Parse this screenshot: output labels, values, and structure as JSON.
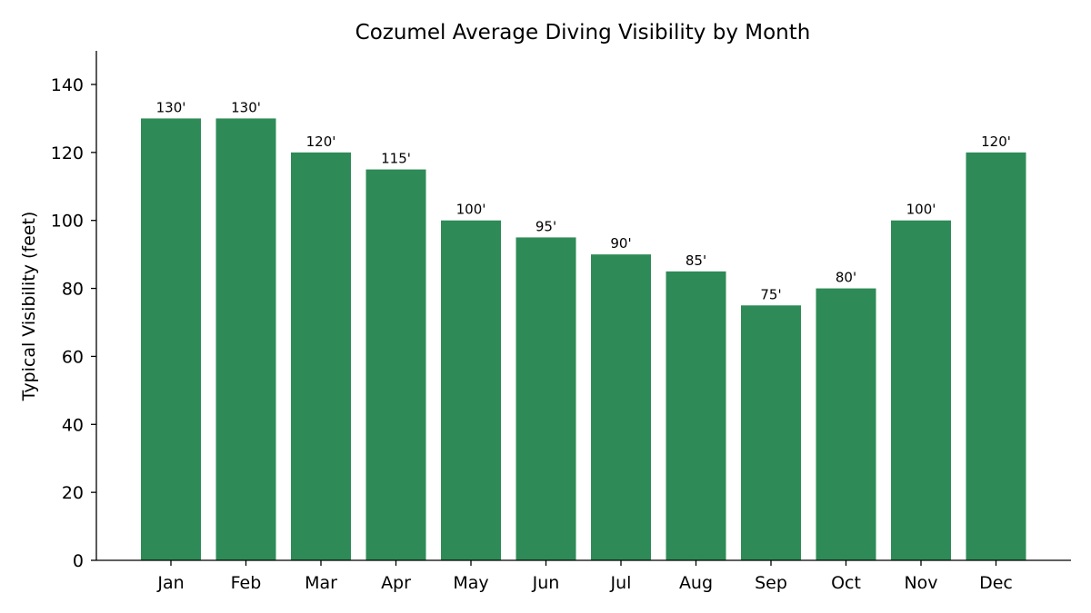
{
  "chart_data": {
    "type": "bar",
    "title": "Cozumel Average Diving Visibility by Month",
    "xlabel": "",
    "ylabel": "Typical Visibility (feet)",
    "categories": [
      "Jan",
      "Feb",
      "Mar",
      "Apr",
      "May",
      "Jun",
      "Jul",
      "Aug",
      "Sep",
      "Oct",
      "Nov",
      "Dec"
    ],
    "values": [
      130,
      130,
      120,
      115,
      100,
      95,
      90,
      85,
      75,
      80,
      100,
      120
    ],
    "data_labels": [
      "130'",
      "130'",
      "120'",
      "115'",
      "100'",
      "95'",
      "90'",
      "85'",
      "75'",
      "80'",
      "100'",
      "120'"
    ],
    "ylim": [
      0,
      150
    ],
    "yticks": [
      0,
      20,
      40,
      60,
      80,
      100,
      120,
      140
    ],
    "grid": false,
    "legend": "none",
    "bar_color": "#2e8b57"
  }
}
